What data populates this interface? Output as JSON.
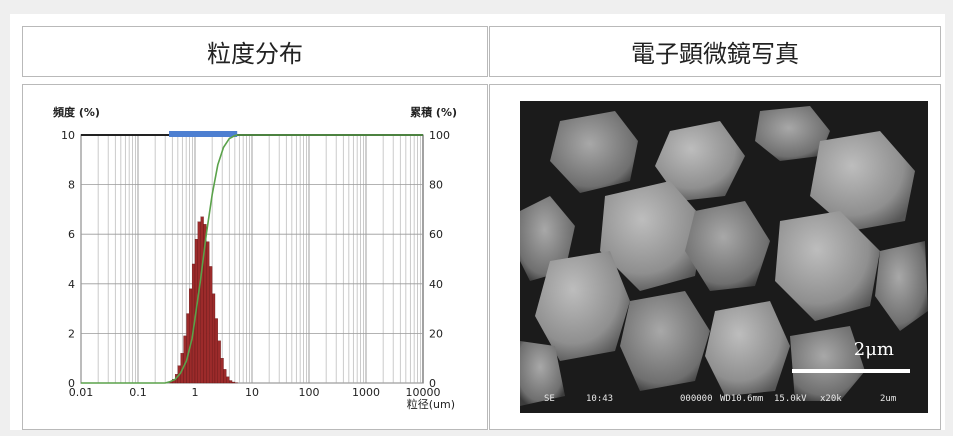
{
  "left_panel": {
    "title": "粒度分布"
  },
  "right_panel": {
    "title": "電子顕微鏡写真"
  },
  "chart_data": {
    "type": "bar",
    "ylabel_left": "頻度 (%)",
    "ylabel_right": "累積 (%)",
    "xlabel": "粒径(um)",
    "x_scale": "log",
    "xlim": [
      0.01,
      10000
    ],
    "ylim_left": [
      0,
      10
    ],
    "ylim_right": [
      0,
      100
    ],
    "x_ticks": [
      "0.01",
      "0.1",
      "1",
      "10",
      "100",
      "1000",
      "10000"
    ],
    "y_ticks_left": [
      "0",
      "2",
      "4",
      "6",
      "8",
      "10"
    ],
    "y_ticks_right": [
      "0",
      "20",
      "40",
      "60",
      "80",
      "100"
    ],
    "bar_color": "#9c2b2b",
    "curve_color": "#5aa24a",
    "range_bar": {
      "from": 0.35,
      "to": 5.5,
      "color": "#4d7fd1"
    },
    "series": [
      {
        "type": "bar",
        "x": [
          0.36,
          0.4,
          0.45,
          0.5,
          0.56,
          0.63,
          0.71,
          0.79,
          0.89,
          1.0,
          1.12,
          1.26,
          1.41,
          1.58,
          1.78,
          2.0,
          2.24,
          2.51,
          2.82,
          3.16,
          3.55,
          3.98,
          4.47,
          5.01
        ],
        "values": [
          0.05,
          0.15,
          0.35,
          0.7,
          1.2,
          1.9,
          2.8,
          3.8,
          4.8,
          5.8,
          6.5,
          6.7,
          6.4,
          5.7,
          4.7,
          3.6,
          2.6,
          1.7,
          1.0,
          0.55,
          0.25,
          0.1,
          0.04,
          0.01
        ]
      },
      {
        "type": "line",
        "x": [
          0.01,
          0.3,
          0.36,
          0.45,
          0.56,
          0.71,
          0.89,
          1.0,
          1.26,
          1.58,
          2.0,
          2.51,
          3.16,
          3.98,
          5.01,
          5.5,
          10000
        ],
        "values": [
          0,
          0,
          0.5,
          1.5,
          4,
          9,
          18,
          26,
          42,
          60,
          76,
          88,
          95,
          98.5,
          99.8,
          100,
          100
        ]
      }
    ]
  },
  "sem_photo": {
    "scale_text": "2μm",
    "info": [
      "SE",
      "10:43",
      "000000",
      "WD10.6mm",
      "15.0kV",
      "x20k",
      "2um"
    ]
  }
}
